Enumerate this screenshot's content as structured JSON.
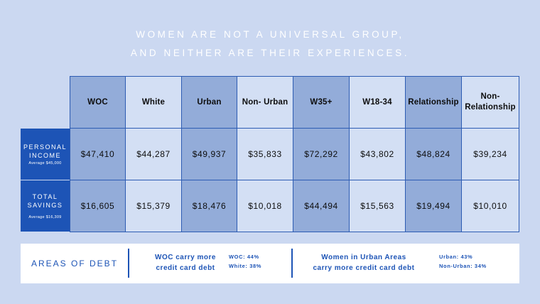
{
  "title": {
    "line1": "WOMEN ARE NOT A UNIVERSAL GROUP,",
    "line2": "AND NEITHER ARE THEIR EXPERIENCES."
  },
  "table": {
    "columns": [
      "WOC",
      "White",
      "Urban",
      "Non- Urban",
      "W35+",
      "W18-34",
      "Relationship",
      "Non-Relationship"
    ],
    "rows": [
      {
        "label_lines": [
          "PERSONAL",
          "INCOME"
        ],
        "sub": "Average $45,000",
        "values": [
          "$47,410",
          "$44,287",
          "$49,937",
          "$35,833",
          "$72,292",
          "$43,802",
          "$48,824",
          "$39,234"
        ]
      },
      {
        "label_lines": [
          "TOTAL",
          "SAVINGS"
        ],
        "sub": "Average $16,309",
        "values": [
          "$16,605",
          "$15,379",
          "$18,476",
          "$10,018",
          "$44,494",
          "$15,563",
          "$19,494",
          "$10,010"
        ]
      }
    ]
  },
  "debt": {
    "title": "AREAS OF DEBT",
    "fact1": [
      "WOC carry more",
      "credit card debt"
    ],
    "stats1": [
      "WOC: 44%",
      "White: 38%"
    ],
    "fact2": [
      "Women in Urban Areas",
      "carry more credit card debt"
    ],
    "stats2": [
      "Urban: 43%",
      "Non-Urban: 34%"
    ]
  },
  "colors": {
    "background": "#cbd8f1",
    "accent": "#1d54b6",
    "dark_column": "#93acd9",
    "light_column": "#d3dff4"
  }
}
